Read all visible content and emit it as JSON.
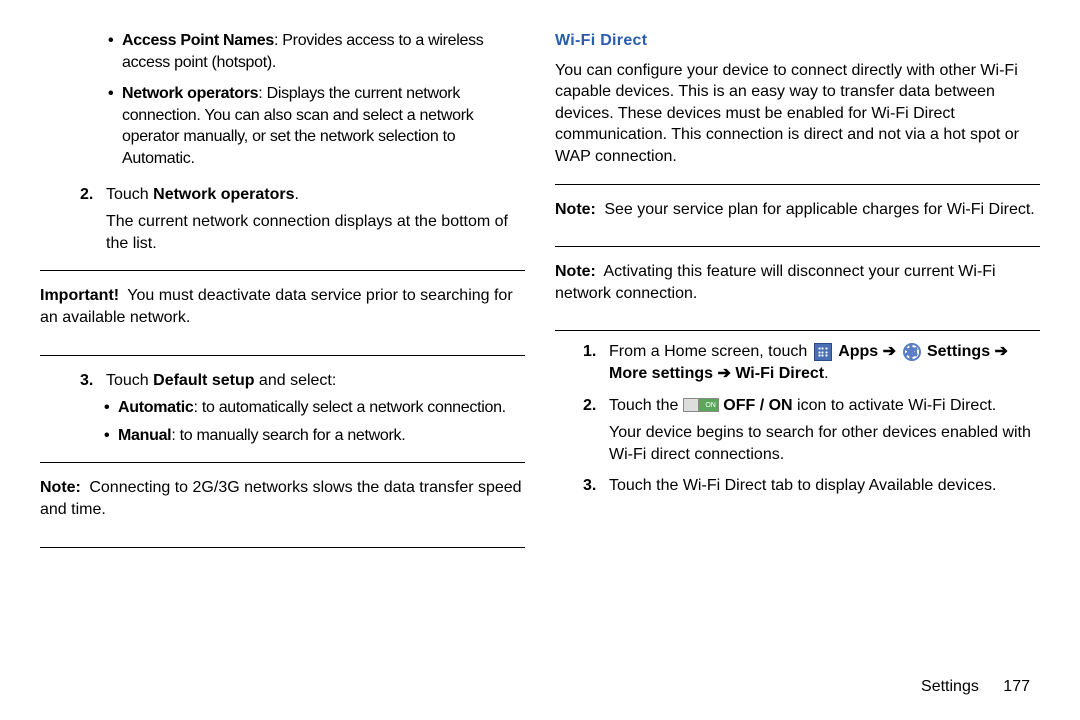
{
  "left": {
    "bullets": [
      {
        "bold": "Access Point Names",
        "text": ": Provides access to a wireless access point (hotspot)."
      },
      {
        "bold": "Network operators",
        "text": ": Displays the current network connection. You can also scan and select a network operator manually, or set the network selection to Automatic."
      }
    ],
    "step2": {
      "num": "2.",
      "prefix": "Touch ",
      "bold": "Network operators",
      "suffix": ".",
      "cont": "The current network connection displays at the bottom of the list."
    },
    "important": {
      "label": "Important!",
      "text": "You must deactivate data service prior to searching for an available network."
    },
    "step3": {
      "num": "3.",
      "prefix": "Touch ",
      "bold": "Default setup",
      "suffix": " and select:"
    },
    "sub_bullets": [
      {
        "bold": "Automatic",
        "text": ": to automatically select a network connection."
      },
      {
        "bold": "Manual",
        "text": ": to manually search for a network."
      }
    ],
    "note": {
      "label": "Note:",
      "text": "Connecting to 2G/3G networks slows the data transfer speed and time."
    }
  },
  "right": {
    "title": "Wi-Fi Direct",
    "intro": "You can configure your device to connect directly with other Wi-Fi capable devices. This is an easy way to transfer data between devices. These devices must be enabled for Wi-Fi Direct communication. This connection is direct and not via a hot spot or WAP connection.",
    "note1": {
      "label": "Note:",
      "text": "See your service plan for applicable charges for Wi-Fi Direct."
    },
    "note2": {
      "label": "Note:",
      "text": "Activating this feature will disconnect your current Wi-Fi network connection."
    },
    "step1": {
      "num": "1.",
      "prefix": "From a Home screen, touch ",
      "apps": "Apps",
      "settings": "Settings",
      "more": "More settings",
      "wifi": "Wi-Fi Direct"
    },
    "step2": {
      "num": "2.",
      "prefix": "Touch the ",
      "toggle_text": "ON",
      "bold": "OFF / ON",
      "suffix": " icon to activate Wi-Fi Direct.",
      "cont": "Your device begins to search for other devices enabled with Wi-Fi direct connections."
    },
    "step3": {
      "num": "3.",
      "text": "Touch the Wi-Fi Direct tab to display Available devices."
    }
  },
  "footer": {
    "section": "Settings",
    "page": "177"
  },
  "colors": {
    "title": "#2a5db0",
    "text": "#000000",
    "rule": "#000000"
  }
}
